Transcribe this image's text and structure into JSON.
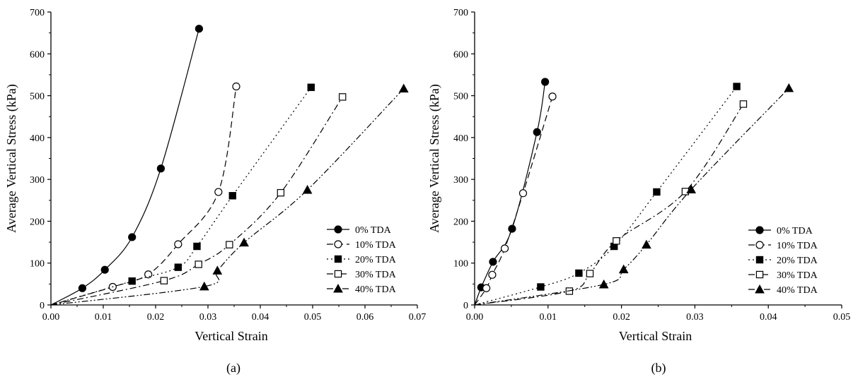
{
  "chart_data": [
    {
      "type": "line",
      "caption": "(a)",
      "xlabel": "Vertical Strain",
      "ylabel": "Average Vertical Stress (kPa)",
      "xlim": [
        0,
        0.07
      ],
      "ylim": [
        0,
        700
      ],
      "xticks": [
        "0.00",
        "0.01",
        "0.02",
        "0.03",
        "0.04",
        "0.05",
        "0.06",
        "0.07"
      ],
      "yticks": [
        "0",
        "100",
        "200",
        "300",
        "400",
        "500",
        "600",
        "700"
      ],
      "grid": false,
      "legend_position": "bottom-right",
      "series": [
        {
          "name": "0% TDA",
          "marker": "circle-filled",
          "dash": "solid",
          "points": [
            [
              0,
              0
            ],
            [
              0.006,
              40
            ],
            [
              0.0103,
              84
            ],
            [
              0.0155,
              162
            ],
            [
              0.021,
              326
            ],
            [
              0.0283,
              660
            ]
          ]
        },
        {
          "name": "10% TDA",
          "marker": "circle-open",
          "dash": "dash",
          "points": [
            [
              0,
              0
            ],
            [
              0.0118,
              43
            ],
            [
              0.0186,
              73
            ],
            [
              0.0243,
              145
            ],
            [
              0.032,
              270
            ],
            [
              0.0354,
              522
            ]
          ]
        },
        {
          "name": "20% TDA",
          "marker": "square-filled",
          "dash": "dot",
          "points": [
            [
              0,
              0
            ],
            [
              0.0155,
              57
            ],
            [
              0.0243,
              90
            ],
            [
              0.0279,
              140
            ],
            [
              0.0347,
              261
            ],
            [
              0.0497,
              520
            ]
          ]
        },
        {
          "name": "30% TDA",
          "marker": "square-open",
          "dash": "dashdot",
          "points": [
            [
              0,
              0
            ],
            [
              0.0216,
              58
            ],
            [
              0.0282,
              97
            ],
            [
              0.0341,
              144
            ],
            [
              0.0439,
              268
            ],
            [
              0.0557,
              497
            ]
          ]
        },
        {
          "name": "40% TDA",
          "marker": "triangle-filled",
          "dash": "dashdotdot",
          "points": [
            [
              0,
              0
            ],
            [
              0.0293,
              44
            ],
            [
              0.0318,
              82
            ],
            [
              0.0369,
              149
            ],
            [
              0.049,
              275
            ],
            [
              0.0674,
              517
            ]
          ]
        }
      ]
    },
    {
      "type": "line",
      "caption": "(b)",
      "xlabel": "Vertical Strain",
      "ylabel": "Average Vertical Stress (kPa)",
      "xlim": [
        0,
        0.05
      ],
      "ylim": [
        0,
        700
      ],
      "xticks": [
        "0.00",
        "0.01",
        "0.02",
        "0.03",
        "0.04",
        "0.05"
      ],
      "yticks": [
        "0",
        "100",
        "200",
        "300",
        "400",
        "500",
        "600",
        "700"
      ],
      "grid": false,
      "legend_position": "bottom-right",
      "series": [
        {
          "name": "0% TDA",
          "marker": "circle-filled",
          "dash": "solid",
          "points": [
            [
              0,
              0
            ],
            [
              0.0009,
              42
            ],
            [
              0.0025,
              103
            ],
            [
              0.0051,
              182
            ],
            [
              0.0085,
              413
            ],
            [
              0.0096,
              533
            ]
          ]
        },
        {
          "name": "10% TDA",
          "marker": "circle-open",
          "dash": "dash",
          "points": [
            [
              0,
              0
            ],
            [
              0.0016,
              40
            ],
            [
              0.0024,
              72
            ],
            [
              0.0041,
              135
            ],
            [
              0.0066,
              267
            ],
            [
              0.0106,
              498
            ]
          ]
        },
        {
          "name": "20% TDA",
          "marker": "square-filled",
          "dash": "dot",
          "points": [
            [
              0,
              0
            ],
            [
              0.009,
              43
            ],
            [
              0.0142,
              76
            ],
            [
              0.019,
              140
            ],
            [
              0.0248,
              270
            ],
            [
              0.0357,
              522
            ]
          ]
        },
        {
          "name": "30% TDA",
          "marker": "square-open",
          "dash": "dashdot",
          "points": [
            [
              0,
              0
            ],
            [
              0.0129,
              33
            ],
            [
              0.0157,
              75
            ],
            [
              0.0193,
              153
            ],
            [
              0.0287,
              271
            ],
            [
              0.0366,
              480
            ]
          ]
        },
        {
          "name": "40% TDA",
          "marker": "triangle-filled",
          "dash": "dashdotdot",
          "points": [
            [
              0,
              0
            ],
            [
              0.0176,
              49
            ],
            [
              0.0203,
              85
            ],
            [
              0.0234,
              144
            ],
            [
              0.0295,
              276
            ],
            [
              0.0428,
              518
            ]
          ]
        }
      ]
    }
  ]
}
